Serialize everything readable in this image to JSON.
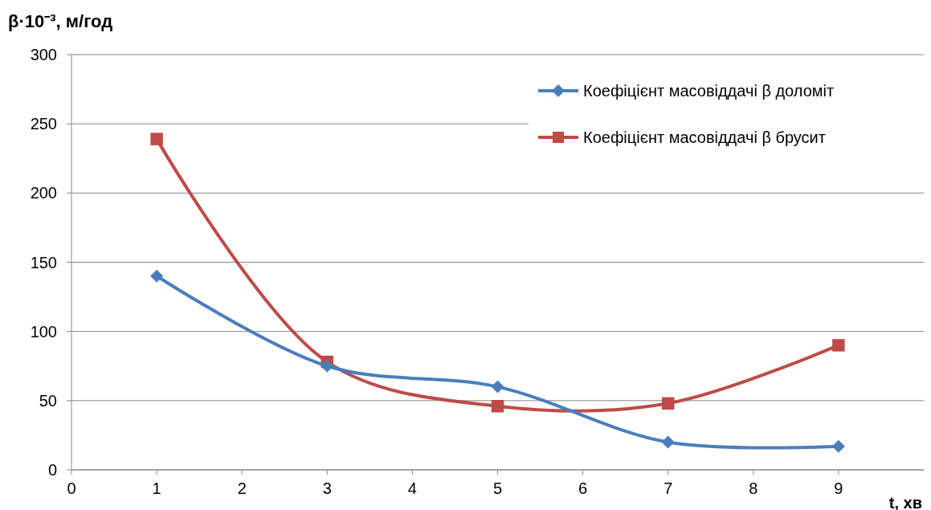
{
  "chart_data": {
    "type": "line",
    "xlabel": "t, хв",
    "ylabel": "β·10⁻³, м/год",
    "x": [
      1,
      3,
      5,
      7,
      9
    ],
    "xlim": [
      0,
      10
    ],
    "xticks": [
      0,
      1,
      2,
      3,
      4,
      5,
      6,
      7,
      8,
      9
    ],
    "ylim": [
      0,
      300
    ],
    "yticks": [
      0,
      50,
      100,
      150,
      200,
      250,
      300
    ],
    "grid": "y",
    "legend": "top right",
    "line_style": "solid",
    "series": [
      {
        "name": "Коефіцієнт масовіддачі β доломіт",
        "color": "#4a7ebb",
        "marker": "diamond",
        "values": [
          140,
          75,
          60,
          20,
          17
        ]
      },
      {
        "name": "Коефіцієнт масовіддачі β брусит",
        "color": "#be4b48",
        "marker": "square",
        "values": [
          239,
          78,
          46,
          48,
          90
        ]
      }
    ]
  }
}
